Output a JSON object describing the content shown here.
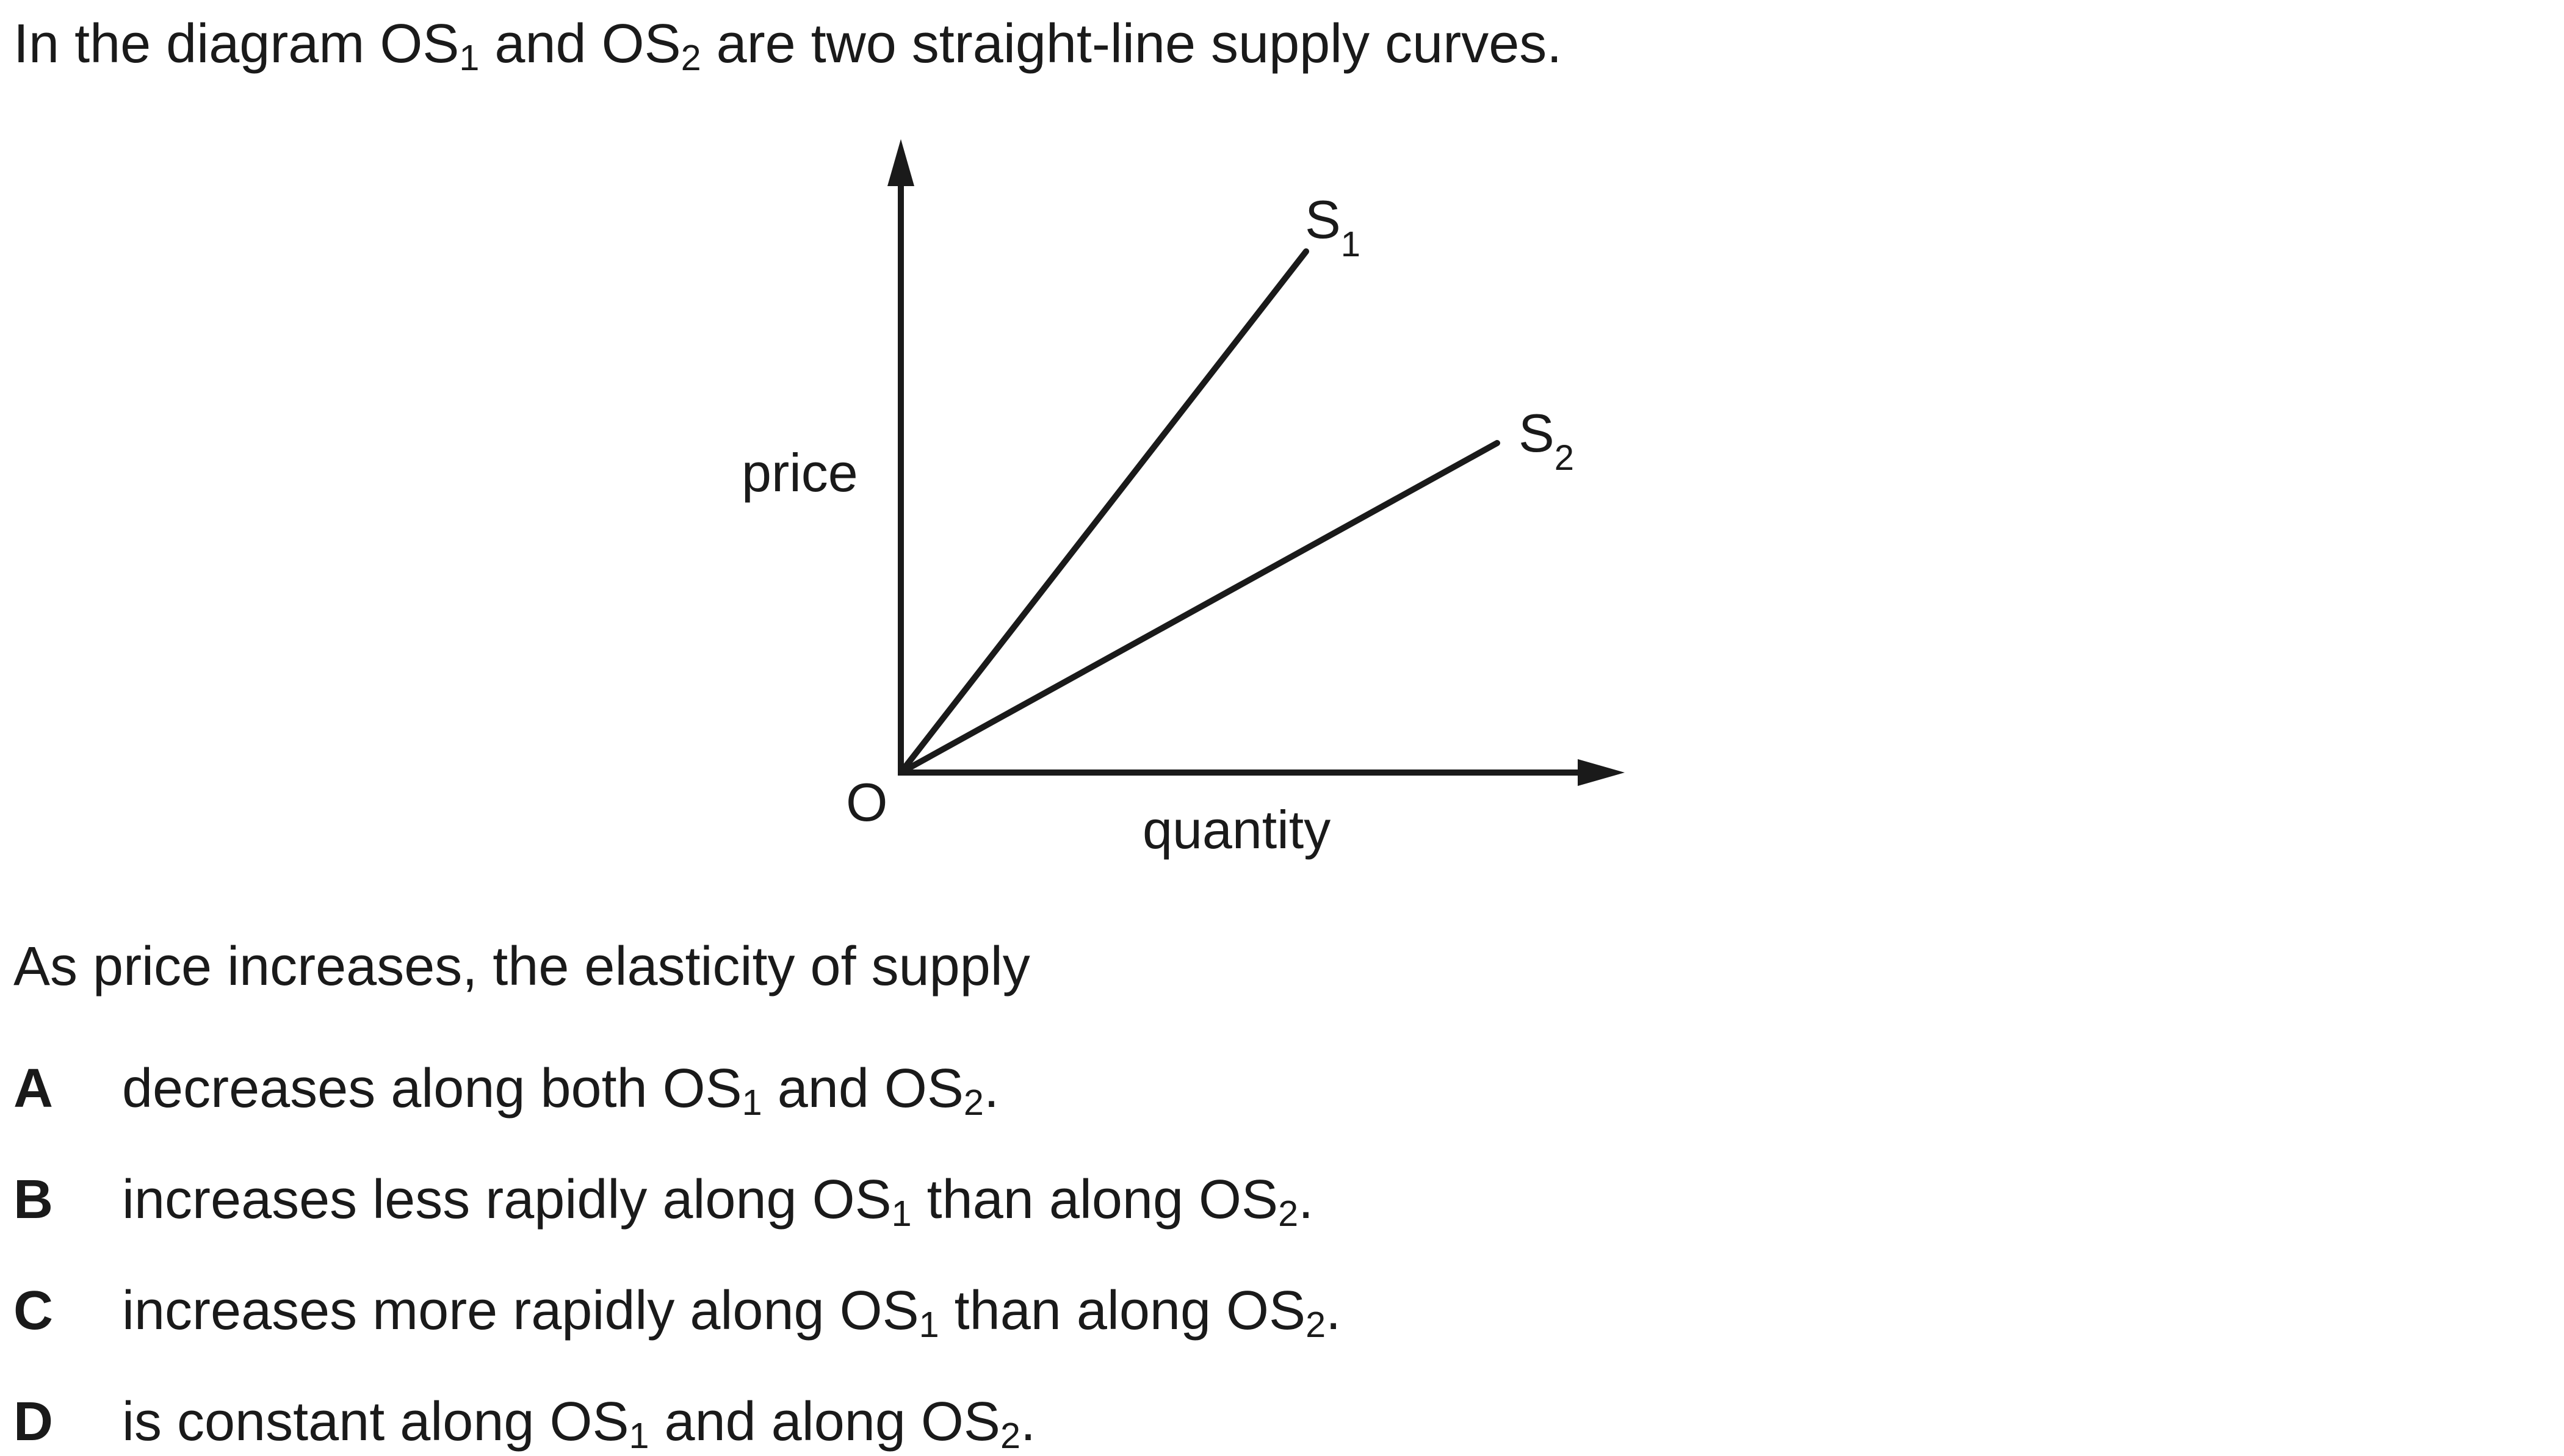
{
  "stem": {
    "before": "In the diagram OS",
    "sub1": "1",
    "middle": " and OS",
    "sub2": "2",
    "after": " are two straight-line supply curves."
  },
  "diagram": {
    "y_axis_label": "price",
    "x_axis_label": "quantity",
    "origin_label": "O",
    "curves": [
      {
        "label": "S",
        "subscript": "1"
      },
      {
        "label": "S",
        "subscript": "2"
      }
    ]
  },
  "question": "As price increases, the elasticity of supply",
  "options": [
    {
      "letter": "A",
      "parts": [
        "decreases along both OS",
        "1",
        " and OS",
        "2",
        "."
      ]
    },
    {
      "letter": "B",
      "parts": [
        "increases less rapidly along OS",
        "1",
        " than along OS",
        "2",
        "."
      ]
    },
    {
      "letter": "C",
      "parts": [
        "increases more rapidly along OS",
        "1",
        " than along OS",
        "2",
        "."
      ]
    },
    {
      "letter": "D",
      "parts": [
        "is constant along OS",
        "1",
        " and along OS",
        "2",
        "."
      ]
    }
  ]
}
